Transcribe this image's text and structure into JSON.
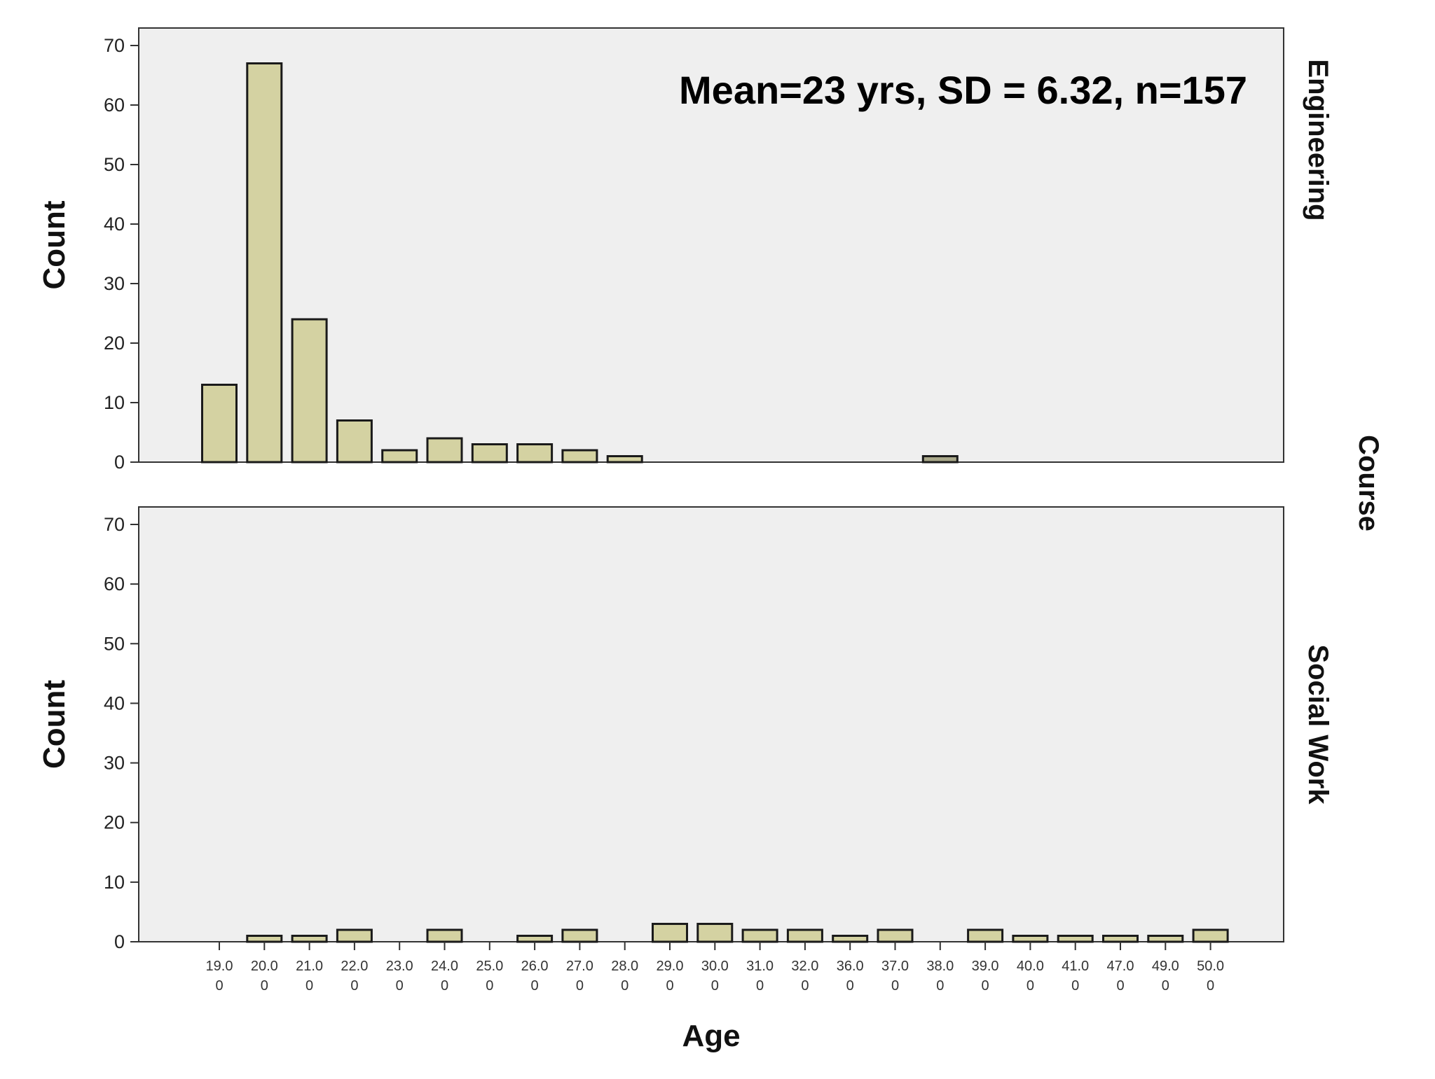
{
  "chart_data": {
    "type": "bar",
    "annotation": "Mean=23 yrs, SD = 6.32, n=157",
    "xlabel": "Age",
    "ylabel": "Count",
    "facet_axis_label": "Course",
    "ylim": [
      0,
      70
    ],
    "yticks": [
      0,
      10,
      20,
      30,
      40,
      50,
      60,
      70
    ],
    "bar_color": "#d4d2a2",
    "bar_color_highlight": "#a9a88a",
    "panel_background": "#efefef",
    "categories": [
      "19.0",
      "20.0",
      "21.0",
      "22.0",
      "23.0",
      "24.0",
      "25.0",
      "26.0",
      "27.0",
      "28.0",
      "29.0",
      "30.0",
      "31.0",
      "32.0",
      "36.0",
      "37.0",
      "38.0",
      "39.0",
      "40.0",
      "41.0",
      "47.0",
      "49.0",
      "50.0"
    ],
    "category_labels": [
      [
        "19.0",
        "0"
      ],
      [
        "20.0",
        "0"
      ],
      [
        "21.0",
        "0"
      ],
      [
        "22.0",
        "0"
      ],
      [
        "23.0",
        "0"
      ],
      [
        "24.0",
        "0"
      ],
      [
        "25.0",
        "0"
      ],
      [
        "26.0",
        "0"
      ],
      [
        "27.0",
        "0"
      ],
      [
        "28.0",
        "0"
      ],
      [
        "29.0",
        "0"
      ],
      [
        "30.0",
        "0"
      ],
      [
        "31.0",
        "0"
      ],
      [
        "32.0",
        "0"
      ],
      [
        "36.0",
        "0"
      ],
      [
        "37.0",
        "0"
      ],
      [
        "38.0",
        "0"
      ],
      [
        "39.0",
        "0"
      ],
      [
        "40.0",
        "0"
      ],
      [
        "41.0",
        "0"
      ],
      [
        "47.0",
        "0"
      ],
      [
        "49.0",
        "0"
      ],
      [
        "50.0",
        "0"
      ]
    ],
    "series": [
      {
        "name": "Engineering",
        "values": [
          13,
          67,
          24,
          7,
          2,
          4,
          3,
          3,
          2,
          1,
          0,
          0,
          0,
          0,
          0,
          0,
          1,
          0,
          0,
          0,
          0,
          0,
          0
        ]
      },
      {
        "name": "Social Work",
        "values": [
          0,
          1,
          1,
          2,
          0,
          2,
          0,
          1,
          2,
          0,
          3,
          3,
          2,
          2,
          1,
          2,
          0,
          2,
          1,
          1,
          1,
          1,
          2
        ]
      }
    ]
  }
}
